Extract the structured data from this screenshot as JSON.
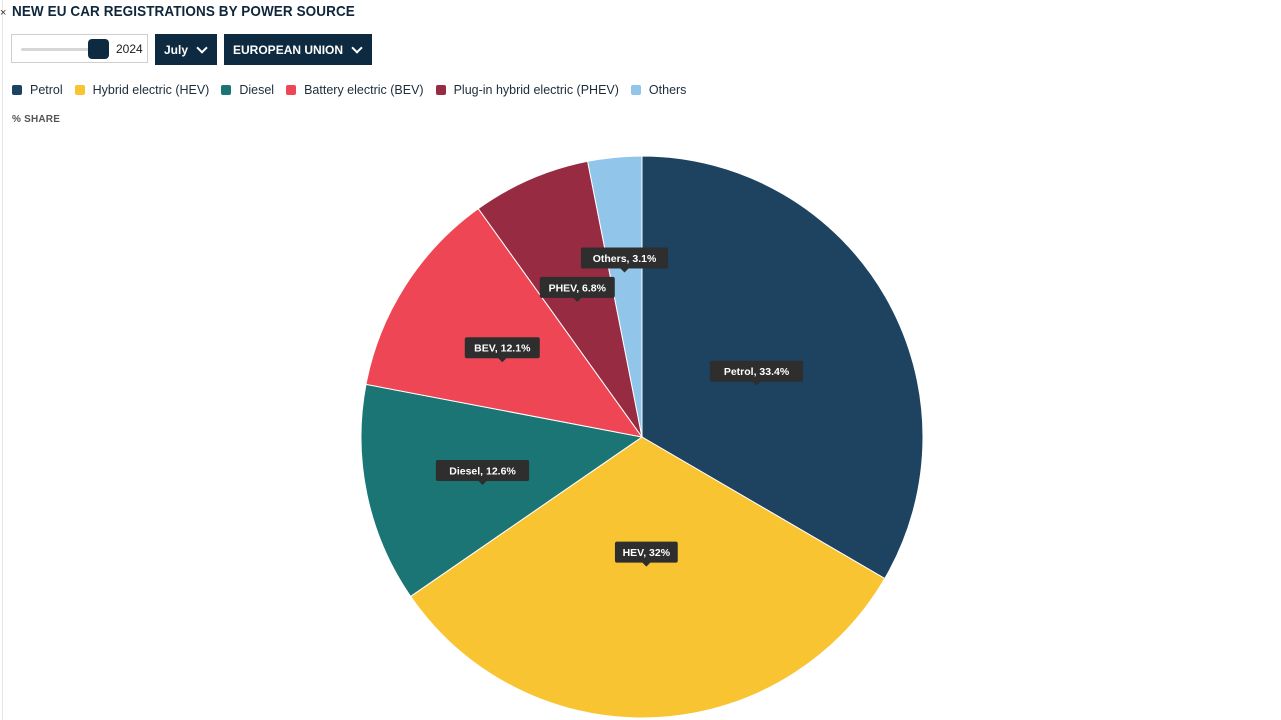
{
  "header": {
    "close_symbol": "×",
    "title": "NEW EU CAR REGISTRATIONS BY POWER SOURCE"
  },
  "controls": {
    "year": {
      "value": 2024,
      "label": "2024"
    },
    "month": {
      "label": "July"
    },
    "region": {
      "label": "EUROPEAN UNION"
    }
  },
  "colors": {
    "brand": "#0e2a40",
    "Petrol": "#1d4361",
    "Hybrid electric (HEV)": "#f9c431",
    "Diesel": "#1c7575",
    "Battery electric (BEV)": "#ee4655",
    "Plug-in hybrid electric (PHEV)": "#972b41",
    "Others": "#92c5ea"
  },
  "chart_data": {
    "type": "pie",
    "title": "NEW EU CAR REGISTRATIONS BY POWER SOURCE",
    "unit_label": "% SHARE",
    "legend_position": "top-left",
    "legend": [
      "Petrol",
      "Hybrid electric (HEV)",
      "Diesel",
      "Battery electric (BEV)",
      "Plug-in hybrid electric (PHEV)",
      "Others"
    ],
    "slices": [
      {
        "name": "Petrol",
        "short": "Petrol",
        "value": 33.4,
        "label": "Petrol, 33.4%"
      },
      {
        "name": "Hybrid electric (HEV)",
        "short": "HEV",
        "value": 32,
        "label": "HEV, 32%"
      },
      {
        "name": "Diesel",
        "short": "Diesel",
        "value": 12.6,
        "label": "Diesel, 12.6%"
      },
      {
        "name": "Battery electric (BEV)",
        "short": "BEV",
        "value": 12.1,
        "label": "BEV, 12.1%"
      },
      {
        "name": "Plug-in hybrid electric (PHEV)",
        "short": "PHEV",
        "value": 6.8,
        "label": "PHEV, 6.8%"
      },
      {
        "name": "Others",
        "short": "Others",
        "value": 3.1,
        "label": "Others, 3.1%"
      }
    ]
  }
}
